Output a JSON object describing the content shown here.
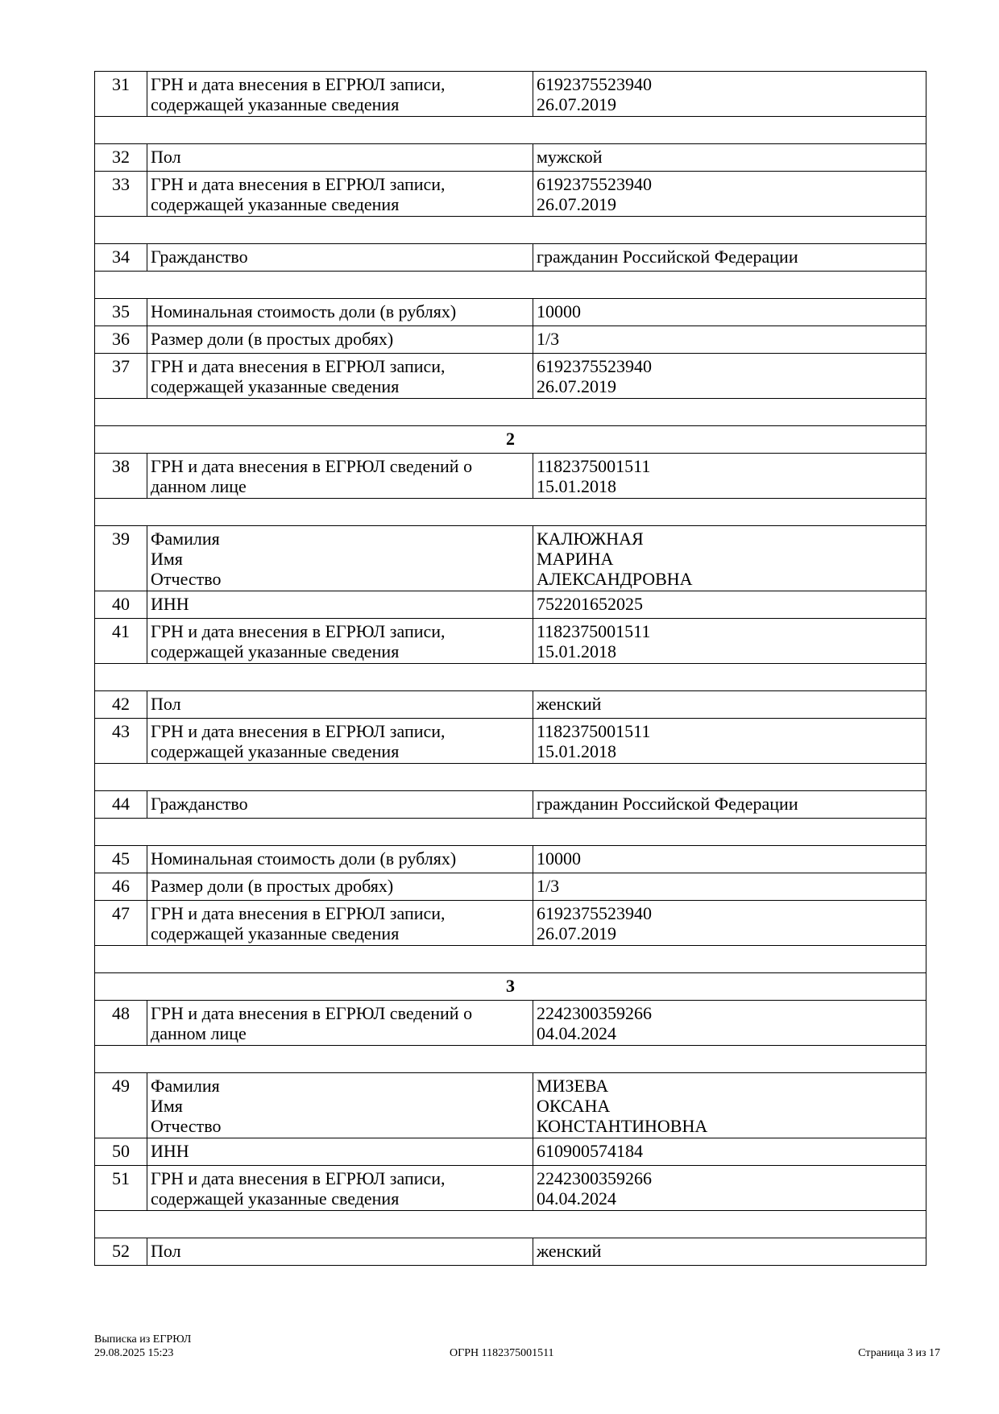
{
  "rows": [
    {
      "type": "row",
      "num": "31",
      "label": [
        "ГРН и дата внесения в ЕГРЮЛ записи,",
        "содержащей указанные сведения"
      ],
      "value": [
        "6192375523940",
        "26.07.2019"
      ]
    },
    {
      "type": "empty"
    },
    {
      "type": "row",
      "num": "32",
      "label": [
        "Пол"
      ],
      "value": [
        "мужской"
      ]
    },
    {
      "type": "row",
      "num": "33",
      "label": [
        "ГРН и дата внесения в ЕГРЮЛ записи,",
        "содержащей указанные сведения"
      ],
      "value": [
        "6192375523940",
        "26.07.2019"
      ]
    },
    {
      "type": "empty"
    },
    {
      "type": "row",
      "num": "34",
      "label": [
        "Гражданство"
      ],
      "value": [
        "гражданин Российской Федерации"
      ]
    },
    {
      "type": "empty"
    },
    {
      "type": "row",
      "num": "35",
      "label": [
        "Номинальная стоимость доли (в рублях)"
      ],
      "value": [
        "10000"
      ]
    },
    {
      "type": "row",
      "num": "36",
      "label": [
        "Размер доли (в простых дробях)"
      ],
      "value": [
        "1/3"
      ]
    },
    {
      "type": "row",
      "num": "37",
      "label": [
        "ГРН и дата внесения в ЕГРЮЛ записи,",
        "содержащей указанные сведения"
      ],
      "value": [
        "6192375523940",
        "26.07.2019"
      ]
    },
    {
      "type": "empty"
    },
    {
      "type": "header",
      "text": "2"
    },
    {
      "type": "row",
      "num": "38",
      "label": [
        "ГРН и дата внесения в ЕГРЮЛ сведений о",
        "данном лице"
      ],
      "value": [
        "1182375001511",
        "15.01.2018"
      ]
    },
    {
      "type": "empty"
    },
    {
      "type": "row",
      "num": "39",
      "label": [
        "Фамилия",
        "Имя",
        "Отчество"
      ],
      "value": [
        "КАЛЮЖНАЯ",
        "МАРИНА",
        "АЛЕКСАНДРОВНА"
      ]
    },
    {
      "type": "row",
      "num": "40",
      "label": [
        "ИНН"
      ],
      "value": [
        "752201652025"
      ]
    },
    {
      "type": "row",
      "num": "41",
      "label": [
        "ГРН и дата внесения в ЕГРЮЛ записи,",
        "содержащей указанные сведения"
      ],
      "value": [
        "1182375001511",
        "15.01.2018"
      ]
    },
    {
      "type": "empty"
    },
    {
      "type": "row",
      "num": "42",
      "label": [
        "Пол"
      ],
      "value": [
        "женский"
      ]
    },
    {
      "type": "row",
      "num": "43",
      "label": [
        "ГРН и дата внесения в ЕГРЮЛ записи,",
        "содержащей указанные сведения"
      ],
      "value": [
        "1182375001511",
        "15.01.2018"
      ]
    },
    {
      "type": "empty"
    },
    {
      "type": "row",
      "num": "44",
      "label": [
        "Гражданство"
      ],
      "value": [
        "гражданин Российской Федерации"
      ]
    },
    {
      "type": "empty"
    },
    {
      "type": "row",
      "num": "45",
      "label": [
        "Номинальная стоимость доли (в рублях)"
      ],
      "value": [
        "10000"
      ]
    },
    {
      "type": "row",
      "num": "46",
      "label": [
        "Размер доли (в простых дробях)"
      ],
      "value": [
        "1/3"
      ]
    },
    {
      "type": "row",
      "num": "47",
      "label": [
        "ГРН и дата внесения в ЕГРЮЛ записи,",
        "содержащей указанные сведения"
      ],
      "value": [
        "6192375523940",
        "26.07.2019"
      ]
    },
    {
      "type": "empty"
    },
    {
      "type": "header",
      "text": "3"
    },
    {
      "type": "row",
      "num": "48",
      "label": [
        "ГРН и дата внесения в ЕГРЮЛ сведений о",
        "данном лице"
      ],
      "value": [
        "2242300359266",
        "04.04.2024"
      ]
    },
    {
      "type": "empty"
    },
    {
      "type": "row",
      "num": "49",
      "label": [
        "Фамилия",
        "Имя",
        "Отчество"
      ],
      "value": [
        "МИЗЕВА",
        "ОКСАНА",
        "КОНСТАНТИНОВНА"
      ]
    },
    {
      "type": "row",
      "num": "50",
      "label": [
        "ИНН"
      ],
      "value": [
        "610900574184"
      ]
    },
    {
      "type": "row",
      "num": "51",
      "label": [
        "ГРН и дата внесения в ЕГРЮЛ записи,",
        "содержащей указанные сведения"
      ],
      "value": [
        "2242300359266",
        "04.04.2024"
      ]
    },
    {
      "type": "empty"
    },
    {
      "type": "row",
      "num": "52",
      "label": [
        "Пол"
      ],
      "value": [
        "женский"
      ]
    }
  ],
  "footer": {
    "doc_title": "Выписка из ЕГРЮЛ",
    "datetime": "29.08.2025 15:23",
    "ogrn": "ОГРН 1182375001511",
    "page": "Страница 3 из 17"
  }
}
